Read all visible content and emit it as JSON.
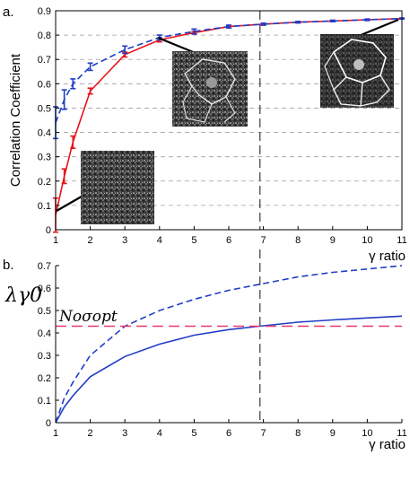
{
  "chart_data": [
    {
      "panel_label": "a.",
      "type": "line",
      "xlabel": "γ ratio",
      "ylabel": "Correlation Coefficient",
      "xlim": [
        1,
        11
      ],
      "ylim": [
        0,
        0.9
      ],
      "x_ticks": [
        "1",
        "2",
        "3",
        "4",
        "5",
        "6",
        "7",
        "8",
        "9",
        "10",
        "11"
      ],
      "y_ticks": [
        "0",
        "0.1",
        "0.2",
        "0.3",
        "0.4",
        "0.5",
        "0.6",
        "0.7",
        "0.8",
        "0.9"
      ],
      "grid": "horizontal dashed",
      "vertical_line_x": 6.9,
      "series": [
        {
          "color": "#e8141c",
          "style": "solid",
          "x": [
            1,
            1.25,
            1.5,
            2,
            3,
            4,
            5,
            6,
            7,
            8,
            9,
            10,
            11
          ],
          "y": [
            0.06,
            0.22,
            0.36,
            0.57,
            0.72,
            0.78,
            0.81,
            0.835,
            0.845,
            0.853,
            0.858,
            0.863,
            0.868
          ],
          "err": [
            0.07,
            0.03,
            0.025,
            0.012,
            0.01,
            0.008,
            0.006,
            0.005,
            0.004,
            0.003,
            0.003,
            0.003,
            0.002
          ]
        },
        {
          "color": "#1f3ec7",
          "style": "dashed",
          "x": [
            1,
            1.25,
            1.5,
            2,
            3,
            4,
            5,
            6,
            7,
            8,
            9,
            10,
            11
          ],
          "y": [
            0.44,
            0.535,
            0.6,
            0.67,
            0.74,
            0.79,
            0.815,
            0.835,
            0.845,
            0.853,
            0.858,
            0.863,
            0.868
          ],
          "err": [
            0.065,
            0.04,
            0.02,
            0.015,
            0.015,
            0.01,
            0.01,
            0.006,
            0.004,
            0.003,
            0.003,
            0.003,
            0.002
          ]
        }
      ]
    },
    {
      "panel_label": "b.",
      "type": "line",
      "xlabel": "γ ratio",
      "ylabel": "λγ0",
      "xlim": [
        1,
        11
      ],
      "ylim": [
        0,
        0.7
      ],
      "x_ticks": [
        "1",
        "2",
        "3",
        "4",
        "5",
        "6",
        "7",
        "8",
        "9",
        "10",
        "11"
      ],
      "y_ticks": [
        "0",
        "0.1",
        "0.2",
        "0.3",
        "0.4",
        "0.5",
        "0.6",
        "0.7"
      ],
      "vertical_line_x": 6.9,
      "threshold": {
        "y": 0.43,
        "color": "#e8386a",
        "label": "Noσopt"
      },
      "series": [
        {
          "color": "#1f3ec7",
          "style": "solid",
          "x": [
            1,
            1.25,
            1.5,
            2,
            3,
            4,
            5,
            6,
            7,
            8,
            9,
            10,
            11
          ],
          "y": [
            0,
            0.07,
            0.12,
            0.205,
            0.295,
            0.35,
            0.39,
            0.415,
            0.432,
            0.448,
            0.458,
            0.467,
            0.475
          ]
        },
        {
          "color": "#1f3ec7",
          "style": "dashed",
          "x": [
            1,
            1.25,
            1.5,
            2,
            3,
            4,
            5,
            6,
            7,
            8,
            9,
            10,
            11
          ],
          "y": [
            0,
            0.11,
            0.18,
            0.3,
            0.43,
            0.5,
            0.55,
            0.59,
            0.62,
            0.65,
            0.67,
            0.685,
            0.7
          ]
        }
      ]
    }
  ]
}
